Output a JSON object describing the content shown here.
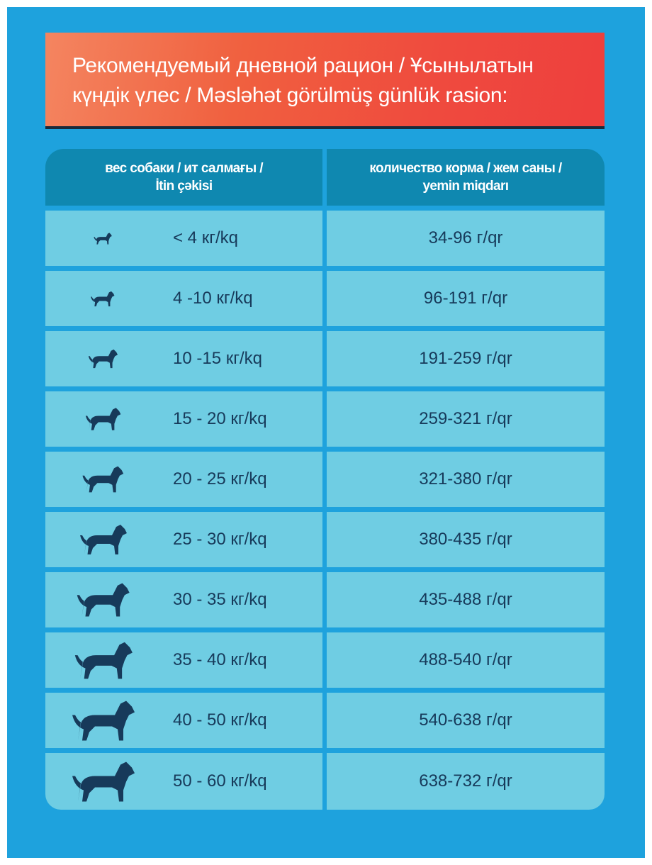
{
  "title": "Рекомендуемый дневной рацион / Ұсынылатын күндік үлес / Məsləhət görülmüş günlük rasion:",
  "title_lines": [
    "Рекомендуемый дневной рацион / Ұсынылатын",
    "күндік үлес / Məsləhət görülmüş günlük rasion:"
  ],
  "colors": {
    "background": "#1ea2dd",
    "banner": "#ef4a3e",
    "header": "#0f88b0",
    "row": "#6fcde3",
    "text": "#173a5a"
  },
  "table": {
    "headers": [
      {
        "line1": "вес собаки / ит салмағы /",
        "line2": "İtin çəkisi"
      },
      {
        "line1": "количество корма / жем саны /",
        "line2": "yemin miqdarı"
      }
    ],
    "rows": [
      {
        "icon": "tiny-dog-icon",
        "weight": "< 4 кг/kq",
        "amount": "34-96 г/qr"
      },
      {
        "icon": "small-dog-icon",
        "weight": "4 -10 кг/kq",
        "amount": "96-191 г/qr"
      },
      {
        "icon": "terrier-icon",
        "weight": "10 -15 кг/kq",
        "amount": "191-259 г/qr"
      },
      {
        "icon": "medium-dog-icon",
        "weight": "15 - 20 кг/kq",
        "amount": "259-321 г/qr"
      },
      {
        "icon": "medium-dog-icon",
        "weight": "20 - 25 кг/kq",
        "amount": "321-380 г/qr"
      },
      {
        "icon": "medium-dog-icon",
        "weight": "25 - 30 кг/kq",
        "amount": "380-435 г/qr"
      },
      {
        "icon": "large-dog-icon",
        "weight": "30 - 35 кг/kq",
        "amount": "435-488 г/qr"
      },
      {
        "icon": "setter-icon",
        "weight": "35 - 40 кг/kq",
        "amount": "488-540 г/qr"
      },
      {
        "icon": "shepherd-icon",
        "weight": "40 - 50 кг/kq",
        "amount": "540-638 г/qr"
      },
      {
        "icon": "great-dane-icon",
        "weight": "50 - 60 кг/kq",
        "amount": "638-732 г/qr"
      }
    ]
  }
}
